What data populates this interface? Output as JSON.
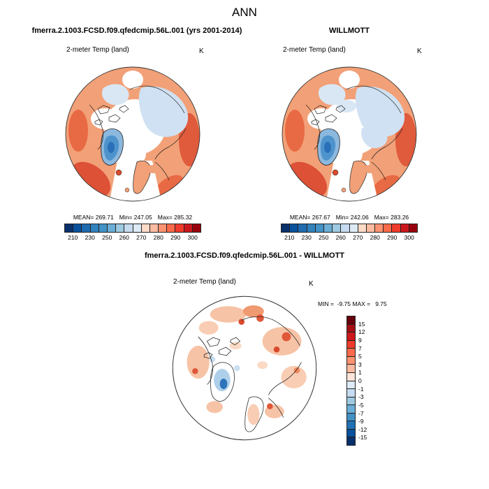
{
  "title": "ANN",
  "panels": {
    "model": {
      "title": "fmerra.2.1003.FCSD.f09.qfedcmip.56L.001 (yrs 2001-2014)",
      "field": "2-meter Temp (land)",
      "units": "K",
      "stats": {
        "mean": "MEAN= 269.71",
        "min": "Min= 247.05",
        "max": "Max= 285.32"
      }
    },
    "obs": {
      "title": "WILLMOTT",
      "field": "2-meter Temp (land)",
      "units": "K",
      "stats": {
        "mean": "MEAN= 267.67",
        "min": "Min= 242.06",
        "max": "Max= 283.26"
      }
    },
    "diff": {
      "title": "fmerra.2.1003.FCSD.f09.qfedcmip.56L.001 - WILLMOTT",
      "field": "2-meter Temp (land)",
      "units": "K",
      "minmax": "MIN =  -9.75 MAX =   9.75"
    }
  },
  "colorbars": {
    "temperature": {
      "orientation": "horizontal",
      "ticks": [
        "210",
        "230",
        "250",
        "260",
        "270",
        "280",
        "290",
        "300"
      ],
      "colors": [
        "#08306b",
        "#08519c",
        "#1f6bb0",
        "#3182bd",
        "#4292c6",
        "#6baed6",
        "#9ecae1",
        "#c6dbef",
        "#deebf7",
        "#fddbc7",
        "#fcbba1",
        "#fc9272",
        "#fb6a4a",
        "#ef3b2c",
        "#cb181d",
        "#99000d"
      ]
    },
    "difference": {
      "orientation": "vertical",
      "ticks": [
        "15",
        "12",
        "9",
        "7",
        "5",
        "3",
        "1",
        "0",
        "-1",
        "-3",
        "-5",
        "-7",
        "-9",
        "-12",
        "-15"
      ],
      "colors": [
        "#67000d",
        "#a50f15",
        "#cb181d",
        "#ef3b2c",
        "#fb6a4a",
        "#fc9272",
        "#fcbba1",
        "#fee5d9",
        "#deebf7",
        "#c6dbef",
        "#9ecae1",
        "#6baed6",
        "#4292c6",
        "#2171b5",
        "#08519c",
        "#08306b"
      ]
    }
  },
  "chart_data": [
    {
      "type": "heatmap",
      "subtype": "polar-stereographic-map",
      "region": "Arctic (north polar view)",
      "season": "ANN",
      "title": "fmerra.2.1003.FCSD.f09.qfedcmip.56L.001 (yrs 2001-2014)",
      "variable": "2-meter Temp (land)",
      "units": "K",
      "stats": {
        "mean": 269.71,
        "min": 247.05,
        "max": 285.32
      },
      "colorbar_ticks": [
        210,
        230,
        250,
        260,
        270,
        280,
        290,
        300
      ],
      "legend_position": "bottom"
    },
    {
      "type": "heatmap",
      "subtype": "polar-stereographic-map",
      "region": "Arctic (north polar view)",
      "season": "ANN",
      "title": "WILLMOTT",
      "variable": "2-meter Temp (land)",
      "units": "K",
      "stats": {
        "mean": 267.67,
        "min": 242.06,
        "max": 283.26
      },
      "colorbar_ticks": [
        210,
        230,
        250,
        260,
        270,
        280,
        290,
        300
      ],
      "legend_position": "bottom"
    },
    {
      "type": "heatmap",
      "subtype": "polar-stereographic-map",
      "region": "Arctic (north polar view)",
      "season": "ANN",
      "title": "fmerra.2.1003.FCSD.f09.qfedcmip.56L.001 - WILLMOTT",
      "variable": "2-meter Temp (land)",
      "units": "K",
      "stats": {
        "min": -9.75,
        "max": 9.75
      },
      "colorbar_ticks": [
        15,
        12,
        9,
        7,
        5,
        3,
        1,
        0,
        -1,
        -3,
        -5,
        -7,
        -9,
        -12,
        -15
      ],
      "legend_position": "right"
    }
  ]
}
